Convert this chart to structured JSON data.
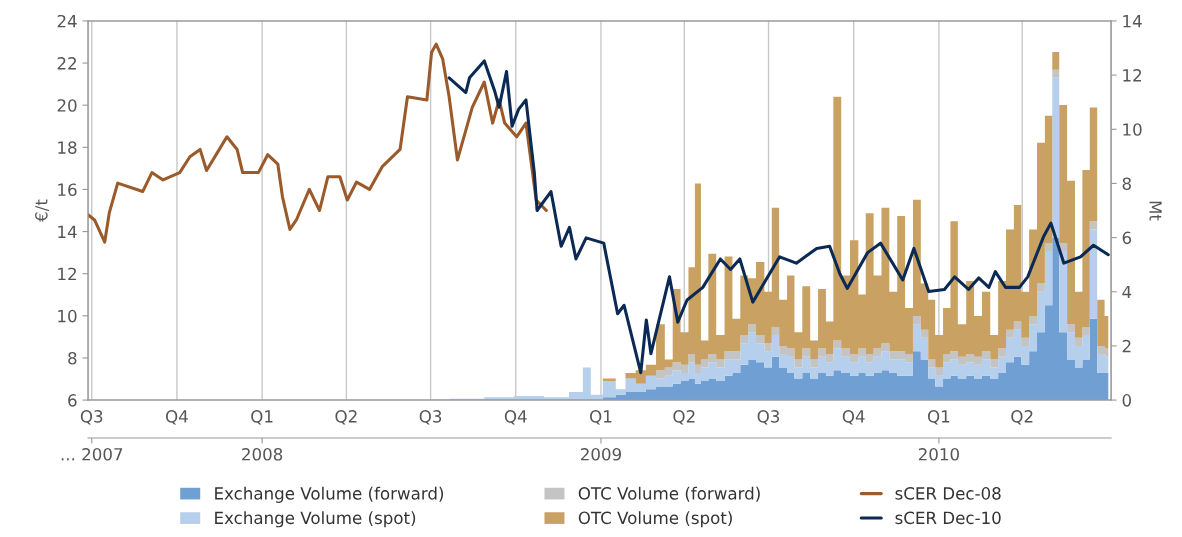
{
  "chart_data": {
    "type": "area",
    "stacked": true,
    "ylabel": "€/t",
    "y2label": "Mt",
    "ylim": [
      6,
      24
    ],
    "yticks": [
      6,
      8,
      10,
      12,
      14,
      16,
      18,
      20,
      22,
      24
    ],
    "y2lim": [
      0,
      14
    ],
    "y2ticks": [
      0,
      2,
      4,
      6,
      8,
      10,
      12,
      14
    ],
    "xlim": [
      "2007-06-27",
      "2010-07-06"
    ],
    "xticks": [
      {
        "value": "2007-07-01",
        "label": "Q3"
      },
      {
        "value": "2007-10-01",
        "label": "Q4"
      },
      {
        "value": "2008-01-01",
        "label": "Q1"
      },
      {
        "value": "2008-04-01",
        "label": "Q2"
      },
      {
        "value": "2008-07-01",
        "label": "Q3"
      },
      {
        "value": "2008-10-01",
        "label": "Q4"
      },
      {
        "value": "2009-01-01",
        "label": "Q1"
      },
      {
        "value": "2009-04-01",
        "label": "Q2"
      },
      {
        "value": "2009-07-01",
        "label": "Q3"
      },
      {
        "value": "2009-10-01",
        "label": "Q4"
      },
      {
        "value": "2010-01-01",
        "label": "Q1"
      },
      {
        "value": "2010-04-01",
        "label": "Q2"
      }
    ],
    "x2lim": [
      "2007-06-27",
      "2010-07-06"
    ],
    "x2ticks": [
      {
        "value": "2007-07-01",
        "label": "... 2007"
      },
      {
        "value": "2008-01-01",
        "label": "2008"
      },
      {
        "value": "2009-01-01",
        "label": "2009"
      },
      {
        "value": "2010-01-01",
        "label": "2010"
      }
    ],
    "grid": "x",
    "legend": "bottom",
    "x": [
      "2008-06-30",
      "2008-08-12",
      "2008-09-13",
      "2008-10-15",
      "2008-11-17",
      "2008-12-08",
      "2008-12-17",
      "2008-12-25",
      "2009-01-12",
      "2009-01-22",
      "2009-02-02",
      "2009-02-13",
      "2009-02-24",
      "2009-03-07",
      "2009-03-15",
      "2009-03-24",
      "2009-04-01",
      "2009-04-10",
      "2009-04-15",
      "2009-04-23",
      "2009-05-01",
      "2009-05-10",
      "2009-05-19",
      "2009-05-27",
      "2009-06-05",
      "2009-06-13",
      "2009-06-22",
      "2009-07-01",
      "2009-07-08",
      "2009-07-17",
      "2009-07-25",
      "2009-08-02",
      "2009-08-11",
      "2009-08-19",
      "2009-08-28",
      "2009-09-05",
      "2009-09-13",
      "2009-09-22",
      "2009-10-02",
      "2009-10-10",
      "2009-10-18",
      "2009-10-27",
      "2009-11-04",
      "2009-11-13",
      "2009-11-21",
      "2009-11-30",
      "2009-12-08",
      "2009-12-17",
      "2009-12-24",
      "2010-01-01",
      "2010-01-10",
      "2010-01-17",
      "2010-01-26",
      "2010-02-04",
      "2010-02-12",
      "2010-02-21",
      "2010-03-02",
      "2010-03-10",
      "2010-03-19",
      "2010-03-27",
      "2010-04-04",
      "2010-04-13",
      "2010-04-21",
      "2010-04-30",
      "2010-05-07",
      "2010-05-15",
      "2010-05-24",
      "2010-06-01",
      "2010-06-09",
      "2010-06-17",
      "2010-06-25",
      "2010-07-03"
    ],
    "series": [
      {
        "name": "Exchange Volume (forward)",
        "color": "#6f9fd3",
        "axis": "y2",
        "values": [
          0,
          0,
          0,
          0,
          0,
          0,
          0,
          0,
          0.1,
          0.2,
          0.3,
          0.3,
          0.4,
          0.5,
          0.5,
          0.6,
          0.7,
          0.8,
          0.6,
          0.7,
          0.8,
          0.7,
          0.9,
          1.0,
          1.3,
          1.5,
          1.4,
          1.2,
          1.6,
          1.2,
          1.0,
          0.8,
          1.0,
          0.8,
          1.0,
          0.9,
          1.1,
          1.0,
          0.9,
          1.0,
          0.9,
          1.0,
          1.1,
          1.0,
          0.9,
          0.9,
          1.8,
          1.5,
          0.8,
          0.5,
          0.8,
          0.9,
          0.8,
          0.9,
          0.8,
          0.9,
          0.8,
          1.0,
          1.4,
          1.6,
          1.3,
          1.8,
          2.5,
          3.5,
          6.0,
          2.5,
          1.5,
          1.2,
          1.5,
          3.0,
          1.0,
          1.0
        ]
      },
      {
        "name": "Exchange Volume (spot)",
        "color": "#b5cfec",
        "axis": "y2",
        "values": [
          0.02,
          0.05,
          0.1,
          0.15,
          0.1,
          0.3,
          1.2,
          0.2,
          0.6,
          0.2,
          0.5,
          0.3,
          0.5,
          0.3,
          0.4,
          0.5,
          0.3,
          0.6,
          0.4,
          0.5,
          0.6,
          0.5,
          0.6,
          0.5,
          0.8,
          1.0,
          0.7,
          0.6,
          0.8,
          0.5,
          0.6,
          0.4,
          0.6,
          0.4,
          0.6,
          0.5,
          0.8,
          0.6,
          0.5,
          0.6,
          0.5,
          0.6,
          0.7,
          0.5,
          0.6,
          0.5,
          1.0,
          0.8,
          0.4,
          0.4,
          0.6,
          0.6,
          0.5,
          0.5,
          0.5,
          0.6,
          0.4,
          0.6,
          0.9,
          1.0,
          0.7,
          1.0,
          1.5,
          2.0,
          5.9,
          3.0,
          1.0,
          0.8,
          0.9,
          3.3,
          0.7,
          0.6
        ]
      },
      {
        "name": "OTC Volume (forward)",
        "color": "#c4c4c4",
        "axis": "y2",
        "values": [
          0,
          0,
          0,
          0,
          0,
          0,
          0,
          0,
          0,
          0,
          0,
          0,
          0,
          0.3,
          0.3,
          0.3,
          0.3,
          0.3,
          0.3,
          0.3,
          0.3,
          0.3,
          0.3,
          0.3,
          0.3,
          0.3,
          0.3,
          0.3,
          0.3,
          0.3,
          0.3,
          0.3,
          0.3,
          0.3,
          0.3,
          0.3,
          0.3,
          0.3,
          0.3,
          0.3,
          0.3,
          0.3,
          0.3,
          0.3,
          0.3,
          0.3,
          0.3,
          0.3,
          0.3,
          0.3,
          0.3,
          0.3,
          0.3,
          0.3,
          0.3,
          0.3,
          0.3,
          0.3,
          0.3,
          0.3,
          0.3,
          0.3,
          0.3,
          0.3,
          0.3,
          0.3,
          0.3,
          0.3,
          0.3,
          0.3,
          0.3,
          0.3
        ]
      },
      {
        "name": "OTC Volume (spot)",
        "color": "#c9a263",
        "axis": "y2",
        "values": [
          0,
          0,
          0,
          0,
          0,
          0,
          0,
          0,
          0.1,
          0,
          0.2,
          0.5,
          0.4,
          1.7,
          0.3,
          2.7,
          1.2,
          3.2,
          6.7,
          0.7,
          3.7,
          0.9,
          3.5,
          1.2,
          2.2,
          1.7,
          2.7,
          1.9,
          4.4,
          1.7,
          2.7,
          1.0,
          2.3,
          0.7,
          2.2,
          1.2,
          9.0,
          2.7,
          4.2,
          2.0,
          5.2,
          2.7,
          5.0,
          2.2,
          5.0,
          1.7,
          4.3,
          1.7,
          2.2,
          1.2,
          1.7,
          4.8,
          1.2,
          2.7,
          1.5,
          2.2,
          0.9,
          2.5,
          3.7,
          4.3,
          1.7,
          3.2,
          5.2,
          4.7,
          0.65,
          5.1,
          5.3,
          1.7,
          5.8,
          4.2,
          1.7,
          1.2
        ]
      },
      {
        "name": "sCER Dec-08",
        "type": "line",
        "color": "#9a5a2a",
        "x": [
          "2007-06-27",
          "2007-07-04",
          "2007-07-15",
          "2007-07-20",
          "2007-07-29",
          "2007-08-25",
          "2007-09-04",
          "2007-09-16",
          "2007-10-04",
          "2007-10-15",
          "2007-10-26",
          "2007-11-02",
          "2007-11-13",
          "2007-11-24",
          "2007-12-05",
          "2007-12-11",
          "2007-12-28",
          "2008-01-07",
          "2008-01-18",
          "2008-01-23",
          "2008-01-31",
          "2008-02-07",
          "2008-02-21",
          "2008-03-03",
          "2008-03-12",
          "2008-03-25",
          "2008-04-02",
          "2008-04-12",
          "2008-04-26",
          "2008-05-10",
          "2008-05-29",
          "2008-06-06",
          "2008-06-27",
          "2008-07-02",
          "2008-07-07",
          "2008-07-14",
          "2008-07-21",
          "2008-07-30",
          "2008-08-15",
          "2008-08-28",
          "2008-09-06",
          "2008-09-13",
          "2008-09-19",
          "2008-10-02",
          "2008-10-12",
          "2008-10-23",
          "2008-11-03"
        ],
        "values": [
          14.8,
          14.55,
          13.5,
          14.9,
          16.3,
          15.9,
          16.8,
          16.45,
          16.8,
          17.55,
          17.9,
          16.9,
          17.7,
          18.5,
          17.9,
          16.8,
          16.8,
          17.65,
          17.2,
          15.65,
          14.1,
          14.55,
          16.0,
          15.0,
          16.6,
          16.6,
          15.5,
          16.35,
          16.0,
          17.1,
          17.9,
          20.4,
          20.25,
          22.5,
          22.9,
          22.2,
          20.4,
          17.4,
          19.9,
          21.1,
          19.15,
          20.25,
          19.15,
          18.5,
          19.15,
          15.5,
          15.0
        ]
      },
      {
        "name": "sCER Dec-10",
        "type": "line",
        "color": "#0a2a55",
        "x": [
          "2008-07-21",
          "2008-08-08",
          "2008-08-12",
          "2008-08-28",
          "2008-09-08",
          "2008-09-13",
          "2008-09-21",
          "2008-09-27",
          "2008-10-04",
          "2008-10-12",
          "2008-10-21",
          "2008-10-24",
          "2008-11-08",
          "2008-11-19",
          "2008-11-28",
          "2008-12-05",
          "2008-12-16",
          "2009-01-04",
          "2009-01-19",
          "2009-01-26",
          "2009-02-13",
          "2009-02-19",
          "2009-02-24",
          "2009-03-16",
          "2009-03-25",
          "2009-04-04",
          "2009-04-21",
          "2009-05-10",
          "2009-05-21",
          "2009-05-31",
          "2009-06-14",
          "2009-07-13",
          "2009-07-31",
          "2009-08-22",
          "2009-09-05",
          "2009-09-16",
          "2009-09-24",
          "2009-10-16",
          "2009-10-30",
          "2009-11-23",
          "2009-12-05",
          "2009-12-21",
          "2010-01-07",
          "2010-01-18",
          "2010-02-02",
          "2010-02-13",
          "2010-02-24",
          "2010-03-03",
          "2010-03-14",
          "2010-03-29",
          "2010-04-07",
          "2010-04-24",
          "2010-05-02",
          "2010-05-16",
          "2010-06-03",
          "2010-06-17",
          "2010-07-03"
        ],
        "values": [
          21.3,
          20.6,
          21.3,
          22.1,
          20.7,
          19.9,
          21.6,
          19.0,
          19.8,
          20.25,
          16.8,
          15.0,
          15.9,
          13.3,
          14.2,
          12.7,
          13.7,
          13.45,
          10.1,
          10.5,
          7.3,
          9.8,
          8.2,
          11.85,
          9.7,
          10.75,
          11.35,
          12.7,
          12.2,
          12.7,
          10.65,
          12.8,
          12.5,
          13.2,
          13.3,
          12.0,
          11.3,
          13.0,
          13.45,
          11.7,
          13.2,
          11.15,
          11.25,
          11.85,
          11.25,
          11.8,
          11.35,
          12.1,
          11.35,
          11.35,
          11.85,
          13.75,
          14.4,
          12.5,
          12.8,
          13.35,
          12.9
        ]
      }
    ]
  }
}
